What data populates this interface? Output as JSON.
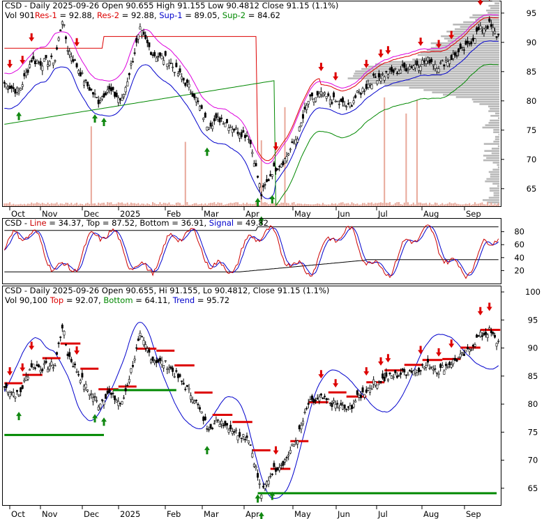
{
  "chart_data": [
    {
      "type": "candlestick",
      "panel": "price",
      "header": {
        "line1": "CSD - Daily 2025-09-26 Open 90.655  High 91.155  Low 90.4812  Close 91.15 (1.1%)",
        "line2": [
          {
            "text": "Vol 901",
            "color": "#000000"
          },
          {
            "text": "Res-1",
            "color": "#dd0000"
          },
          {
            "text": " = 92.88, ",
            "color": "#000000"
          },
          {
            "text": "Res-2",
            "color": "#dd0000"
          },
          {
            "text": " = 92.88, ",
            "color": "#000000"
          },
          {
            "text": "Sup-1",
            "color": "#0000cc"
          },
          {
            "text": " = 89.05, ",
            "color": "#000000"
          },
          {
            "text": "Sup-2",
            "color": "#008800"
          },
          {
            "text": " = 84.62",
            "color": "#000000"
          }
        ]
      },
      "x_ticks": [
        "Oct",
        "Nov",
        "Dec",
        "2025",
        "Feb",
        "Mar",
        "Apr",
        "May",
        "Jun",
        "Jul",
        "Aug",
        "Sep"
      ],
      "y_ticks": [
        95,
        90,
        85,
        80,
        75,
        70,
        65
      ],
      "ylim": [
        62,
        97
      ],
      "close_anchors": [
        [
          0,
          83
        ],
        [
          8,
          81.5
        ],
        [
          15,
          87
        ],
        [
          20,
          86.5
        ],
        [
          28,
          87
        ],
        [
          32,
          94
        ],
        [
          35,
          89
        ],
        [
          45,
          83
        ],
        [
          52,
          80
        ],
        [
          57,
          82
        ],
        [
          65,
          80
        ],
        [
          70,
          86
        ],
        [
          75,
          92
        ],
        [
          82,
          88
        ],
        [
          90,
          87
        ],
        [
          98,
          84
        ],
        [
          105,
          81
        ],
        [
          112,
          76
        ],
        [
          120,
          77
        ],
        [
          128,
          75
        ],
        [
          135,
          74
        ],
        [
          138,
          70
        ],
        [
          142,
          64
        ],
        [
          148,
          68
        ],
        [
          155,
          70
        ],
        [
          162,
          74
        ],
        [
          168,
          80
        ],
        [
          175,
          81
        ],
        [
          182,
          80
        ],
        [
          190,
          79
        ],
        [
          195,
          81
        ],
        [
          205,
          84
        ],
        [
          215,
          85
        ],
        [
          225,
          86
        ],
        [
          235,
          87
        ],
        [
          240,
          86
        ],
        [
          250,
          88
        ],
        [
          255,
          89
        ],
        [
          262,
          92
        ],
        [
          268,
          93
        ],
        [
          272,
          91.15
        ]
      ],
      "series": [
        {
          "name": "Res-1",
          "color": "#dd0000"
        },
        {
          "name": "Res-2",
          "color": "#dd00dd"
        },
        {
          "name": "Sup-1",
          "color": "#0000cc"
        },
        {
          "name": "Sup-2",
          "color": "#008800"
        }
      ],
      "volume_profile": "right-side horizontal grey histogram",
      "arrows_up_days": [
        8,
        50,
        55,
        112,
        140,
        148,
        142
      ],
      "arrows_down_days": [
        3,
        10,
        15,
        40,
        150,
        175,
        183,
        200,
        208,
        212,
        230,
        240,
        247,
        263,
        268
      ]
    },
    {
      "type": "line",
      "panel": "stochastic",
      "header": [
        {
          "text": "CSD - ",
          "color": "#000000"
        },
        {
          "text": "Line",
          "color": "#cc0000"
        },
        {
          "text": " = 34.37, ",
          "color": "#000000"
        },
        {
          "text": "Top",
          "color": "#000000"
        },
        {
          "text": " = 87.52, ",
          "color": "#000000"
        },
        {
          "text": "Bottom",
          "color": "#000000"
        },
        {
          "text": " = 36.91, ",
          "color": "#000000"
        },
        {
          "text": "Signal",
          "color": "#0000cc"
        },
        {
          "text": " = 49.82",
          "color": "#000000"
        }
      ],
      "y_ticks": [
        80,
        60,
        40,
        20
      ],
      "ylim": [
        0,
        100
      ],
      "series": [
        {
          "name": "Line",
          "color": "#cc0000"
        },
        {
          "name": "Signal",
          "color": "#0000cc"
        },
        {
          "name": "Top",
          "color": "#000000"
        },
        {
          "name": "Bottom",
          "color": "#000000"
        }
      ]
    },
    {
      "type": "candlestick",
      "panel": "trend",
      "header": {
        "line1": "CSD - Daily 2025-09-26 Open 90.655, Hi 91.155, Lo 90.4812, Close 91.15 (1.1%)",
        "line2": [
          {
            "text": "Vol 90,100 ",
            "color": "#000000"
          },
          {
            "text": "Top",
            "color": "#dd0000"
          },
          {
            "text": " = 92.07, ",
            "color": "#000000"
          },
          {
            "text": "Bottom",
            "color": "#008800"
          },
          {
            "text": " = 64.11, ",
            "color": "#000000"
          },
          {
            "text": "Trend",
            "color": "#0000cc"
          },
          {
            "text": " = 95.72",
            "color": "#000000"
          }
        ]
      },
      "x_ticks": [
        "Oct",
        "Nov",
        "Dec",
        "2025",
        "Feb",
        "Mar",
        "Apr",
        "May",
        "Jun",
        "Jul",
        "Aug",
        "Sep"
      ],
      "y_ticks": [
        100,
        95,
        90,
        85,
        80,
        75,
        70,
        65
      ],
      "ylim": [
        62,
        101
      ],
      "series": [
        {
          "name": "Top",
          "color": "#dd0000"
        },
        {
          "name": "Bottom",
          "color": "#008800"
        },
        {
          "name": "Trend",
          "color": "#0000cc"
        }
      ]
    }
  ]
}
